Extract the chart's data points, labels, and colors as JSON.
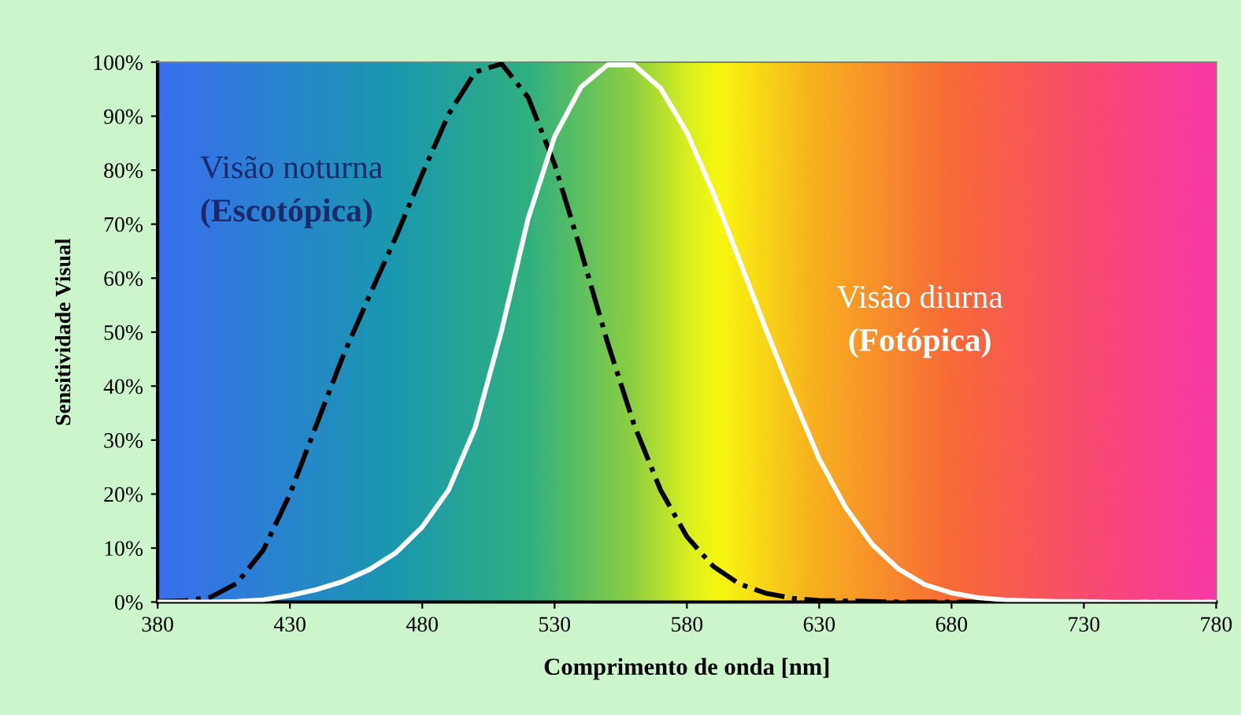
{
  "chart_data": {
    "type": "line",
    "xlabel": "Comprimento de onda [nm]",
    "ylabel": "Sensitividade Visual",
    "x": [
      380,
      390,
      400,
      410,
      420,
      430,
      440,
      450,
      460,
      470,
      480,
      490,
      500,
      510,
      520,
      530,
      540,
      550,
      560,
      570,
      580,
      590,
      600,
      610,
      620,
      630,
      640,
      650,
      660,
      670,
      680,
      690,
      700,
      710,
      720,
      730,
      740,
      750,
      760,
      770,
      780
    ],
    "series": [
      {
        "color": "#000000",
        "line_style": "dashdot",
        "values": [
          0.1,
          0.2,
          0.9,
          3.5,
          9.7,
          20.0,
          32.8,
          45.5,
          56.7,
          67.6,
          79.3,
          90.4,
          98.2,
          99.7,
          93.5,
          81.1,
          65.0,
          48.1,
          32.9,
          20.8,
          12.1,
          6.6,
          3.3,
          1.6,
          0.7,
          0.3,
          0.2,
          0.1,
          0,
          0,
          0,
          0,
          0,
          0,
          0,
          0,
          0,
          0,
          0,
          0,
          0
        ]
      },
      {
        "color": "#ffffff",
        "line_style": "solid",
        "values": [
          0,
          0,
          0,
          0.1,
          0.4,
          1.2,
          2.3,
          3.8,
          6.0,
          9.1,
          13.9,
          20.8,
          32.3,
          50.3,
          71.0,
          86.2,
          95.4,
          99.5,
          99.5,
          95.2,
          87.0,
          75.7,
          63.1,
          50.3,
          38.1,
          26.5,
          17.5,
          10.7,
          6.1,
          3.2,
          1.7,
          0.8,
          0.4,
          0.2,
          0.1,
          0.1,
          0,
          0,
          0,
          0,
          0
        ]
      }
    ],
    "xlim": [
      380,
      780
    ],
    "xticks": [
      380,
      430,
      480,
      530,
      580,
      630,
      680,
      730,
      780
    ],
    "ylim": [
      0,
      100
    ],
    "yticks": [
      {
        "value": 0,
        "label": "0%"
      },
      {
        "value": 10,
        "label": "10%"
      },
      {
        "value": 20,
        "label": "20%"
      },
      {
        "value": 30,
        "label": "30%"
      },
      {
        "value": 40,
        "label": "40%"
      },
      {
        "value": 50,
        "label": "50%"
      },
      {
        "value": 60,
        "label": "60%"
      },
      {
        "value": 70,
        "label": "70%"
      },
      {
        "value": 80,
        "label": "80%"
      },
      {
        "value": 90,
        "label": "90%"
      },
      {
        "value": 100,
        "label": "100%"
      }
    ],
    "annotations": [
      "Visão noturna",
      "(Escotópica)",
      "Visão diurna",
      "(Fotópica)"
    ]
  }
}
